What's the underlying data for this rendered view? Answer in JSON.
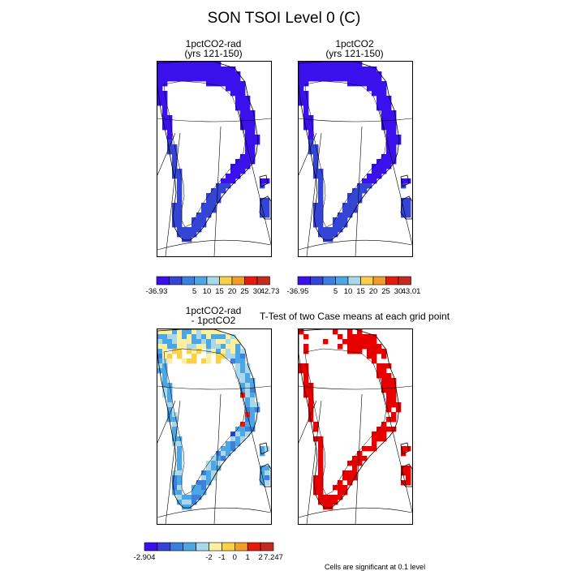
{
  "title": "SON TSOI Level 0 (C)",
  "colors": {
    "abs_scale": [
      "#3a10ec",
      "#3444d4",
      "#3b80dc",
      "#4da6e4",
      "#a9d8ec",
      "#fad04a",
      "#f29d2a",
      "#e61b10",
      "#c42a20"
    ],
    "diff_scale": [
      "#3a10ec",
      "#3444d4",
      "#3b80dc",
      "#4da6e4",
      "#a9d8ec",
      "#fbf0a0",
      "#fad04a",
      "#f29d2a",
      "#e61b10",
      "#c42a20"
    ],
    "sig_color": "#e60000"
  },
  "panels": [
    {
      "id": "p1",
      "title_line1": "1pctCO2-rad",
      "title_line2": "(yrs 121-150)",
      "colorbar_labels": [
        "-36.93",
        "5",
        "10",
        "15",
        "20",
        "25",
        "30",
        "42.73"
      ]
    },
    {
      "id": "p2",
      "title_line1": "1pctCO2",
      "title_line2": "(yrs 121-150)",
      "colorbar_labels": [
        "-36.95",
        "5",
        "10",
        "15",
        "20",
        "25",
        "30",
        "43.01"
      ]
    },
    {
      "id": "p3",
      "title_line1": "1pctCO2-rad",
      "title_line2": "- 1pctCO2",
      "colorbar_labels": [
        "-2.904",
        "-2",
        "-1",
        "0",
        "1",
        "2",
        "7.247"
      ]
    },
    {
      "id": "p4",
      "title_line1": "T-Test of two Case means at each grid point",
      "title_line2": "",
      "colorbar_labels": []
    }
  ],
  "chart_data": [
    {
      "type": "heatmap",
      "title": "1pctCO2-rad",
      "subtitle": "(yrs 121-150)",
      "colorbar": {
        "min": -36.93,
        "max": 42.73,
        "ticks": [
          5,
          10,
          15,
          20,
          25,
          30
        ],
        "n_colors": 9
      },
      "dominant_class": "lowest (< 5)"
    },
    {
      "type": "heatmap",
      "title": "1pctCO2",
      "subtitle": "(yrs 121-150)",
      "colorbar": {
        "min": -36.95,
        "max": 43.01,
        "ticks": [
          5,
          10,
          15,
          20,
          25,
          30
        ],
        "n_colors": 9
      },
      "dominant_class": "lowest (< 5)"
    },
    {
      "type": "heatmap",
      "title": "1pctCO2-rad",
      "subtitle": "- 1pctCO2",
      "colorbar": {
        "min": -2.904,
        "max": 7.247,
        "ticks": [
          -2,
          -1,
          0,
          1,
          2
        ],
        "n_colors": 10
      }
    },
    {
      "type": "heatmap",
      "title": "T-Test of two Case means at each grid point"
    }
  ],
  "footnote": "Cells are significant at 0.1 level"
}
